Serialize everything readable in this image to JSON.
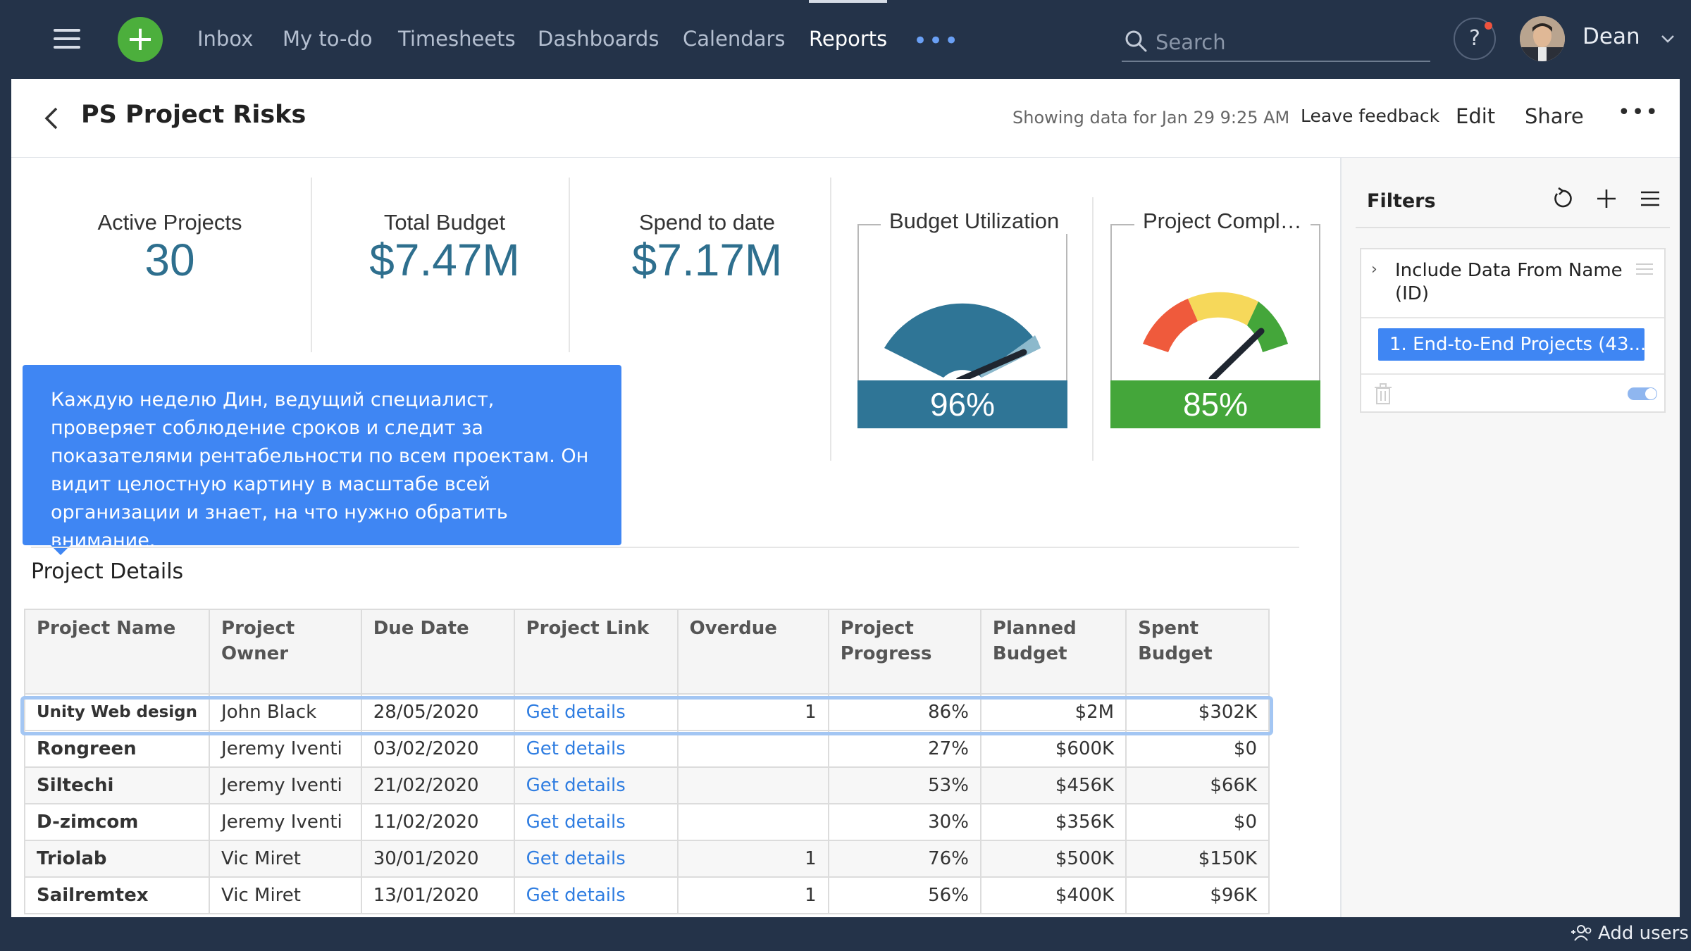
{
  "nav": {
    "items": [
      {
        "label": "Inbox"
      },
      {
        "label": "My to-do"
      },
      {
        "label": "Timesheets"
      },
      {
        "label": "Dashboards"
      },
      {
        "label": "Calendars"
      },
      {
        "label": "Reports"
      }
    ],
    "active": "Reports",
    "more": "•••",
    "search_placeholder": "Search",
    "help": "?",
    "user_name": "Dean"
  },
  "header": {
    "title": "PS Project Risks",
    "showing": "Showing data for Jan 29 9:25 AM",
    "leave_feedback": "Leave feedback",
    "edit": "Edit",
    "share": "Share",
    "more": "•••"
  },
  "kpis": [
    {
      "label": "Active Projects",
      "value": "30"
    },
    {
      "label": "Total Budget",
      "value": "$7.47M"
    },
    {
      "label": "Spend to date",
      "value": "$7.17M"
    }
  ],
  "gauges": [
    {
      "title": "Budget Utilization",
      "value_label": "96%",
      "value": 0.96,
      "bar_color": "#2f7596"
    },
    {
      "title": "Project Compl…",
      "value_label": "85%",
      "value": 0.85,
      "bar_color": "#44a63a"
    }
  ],
  "tooltip": {
    "text": "Каждую неделю Дин, ведущий специалист, проверяет соблюдение сроков и следит за показателями рентабельности по всем проектам. Он видит целостную картину в масштабе всей организации и знает, на что нужно обратить внимание."
  },
  "section_title": "Project Details",
  "table": {
    "headers": [
      "Project Name",
      "Project Owner",
      "Due Date",
      "Project Link",
      "Overdue",
      "Project Progress",
      "Planned Budget",
      "Spent Budget"
    ],
    "rows": [
      {
        "name": "Unity Web design",
        "owner": "John Black",
        "due": "28/05/2020",
        "link": "Get details",
        "overdue": "1",
        "progress": "86%",
        "planned": "$2M",
        "spent": "$302K"
      },
      {
        "name": "Rongreen",
        "owner": "Jeremy Iventi",
        "due": "03/02/2020",
        "link": "Get details",
        "overdue": "",
        "progress": "27%",
        "planned": "$600K",
        "spent": "$0"
      },
      {
        "name": "Siltechi",
        "owner": "Jeremy Iventi",
        "due": "21/02/2020",
        "link": "Get details",
        "overdue": "",
        "progress": "53%",
        "planned": "$456K",
        "spent": "$66K"
      },
      {
        "name": "D-zimcom",
        "owner": "Jeremy Iventi",
        "due": "11/02/2020",
        "link": "Get details",
        "overdue": "",
        "progress": "30%",
        "planned": "$356K",
        "spent": "$0"
      },
      {
        "name": "Triolab",
        "owner": "Vic Miret",
        "due": "30/01/2020",
        "link": "Get details",
        "overdue": "1",
        "progress": "76%",
        "planned": "$500K",
        "spent": "$150K"
      },
      {
        "name": "Sailremtex",
        "owner": "Vic Miret",
        "due": "13/01/2020",
        "link": "Get details",
        "overdue": "1",
        "progress": "56%",
        "planned": "$400K",
        "spent": "$96K"
      }
    ]
  },
  "filters": {
    "title": "Filters",
    "filter_label": "Include Data From Name (ID)",
    "chip": "1. End-to-End Projects (43..."
  },
  "footer": {
    "add_users": "Add users"
  }
}
